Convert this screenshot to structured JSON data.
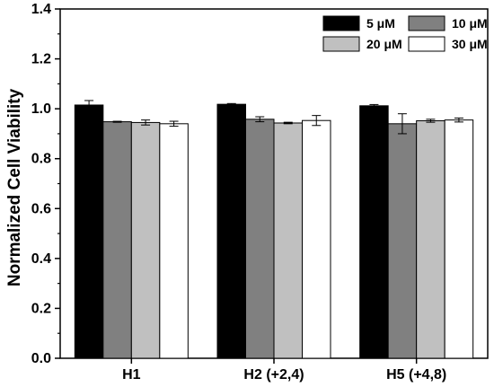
{
  "chart_data": {
    "type": "bar",
    "title": "",
    "xlabel": "",
    "ylabel": "Normalized Cell Viability",
    "ylim": [
      0,
      1.4
    ],
    "yticks": [
      "0.0",
      "0.2",
      "0.4",
      "0.6",
      "0.8",
      "1.0",
      "1.2",
      "1.4"
    ],
    "categories": [
      "H1",
      "H2 (+2,4)",
      "H5 (+4,8)"
    ],
    "legend_position": "top-right",
    "grid": false,
    "series": [
      {
        "name": "5 μM",
        "color": "#000000",
        "values": [
          1.015,
          1.018,
          1.012
        ],
        "errors": [
          0.018,
          0.003,
          0.005
        ]
      },
      {
        "name": "10 μM",
        "color": "#808080",
        "values": [
          0.948,
          0.958,
          0.94
        ],
        "errors": [
          0.002,
          0.01,
          0.04
        ]
      },
      {
        "name": "20 μM",
        "color": "#c0c0c0",
        "values": [
          0.945,
          0.943,
          0.952
        ],
        "errors": [
          0.01,
          0.003,
          0.006
        ]
      },
      {
        "name": "30 μM",
        "color": "#ffffff",
        "values": [
          0.94,
          0.953,
          0.955
        ],
        "errors": [
          0.01,
          0.02,
          0.008
        ]
      }
    ]
  }
}
